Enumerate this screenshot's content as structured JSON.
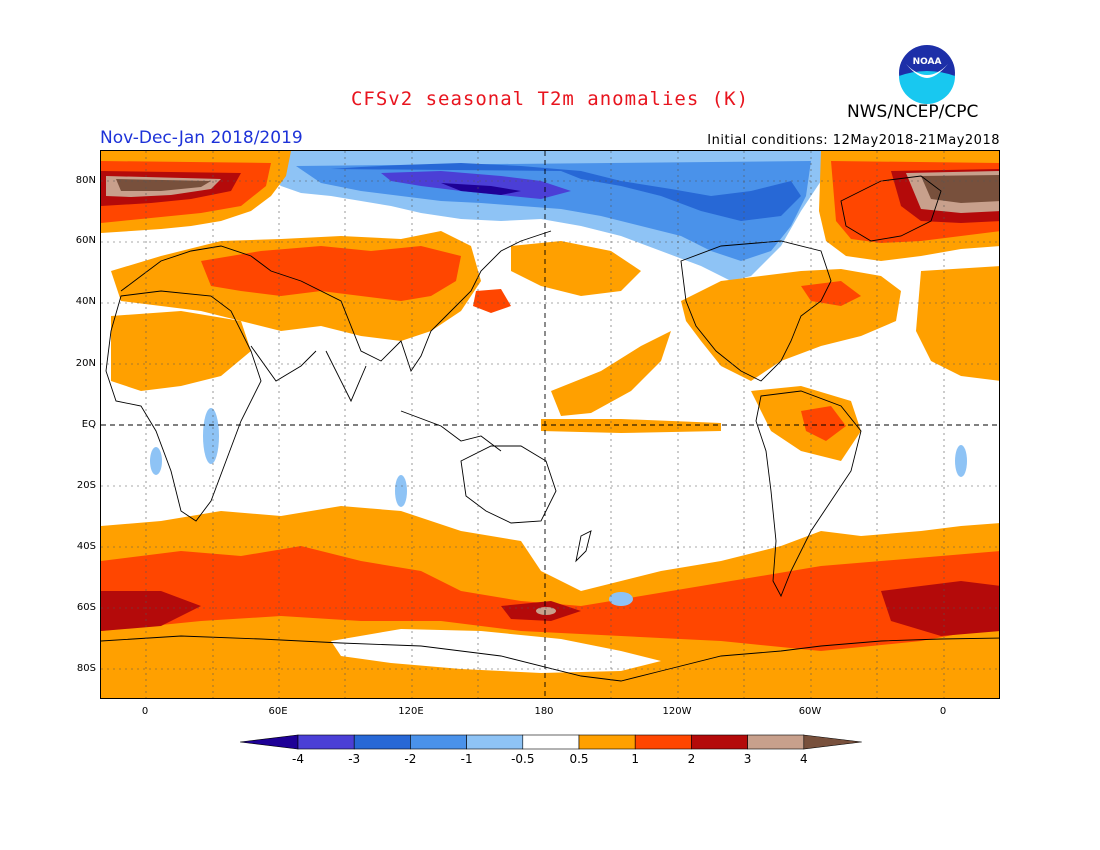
{
  "title": "CFSv2 seasonal T2m anomalies (K)",
  "agency": "NWS/NCEP/CPC",
  "logo_text": "NOAA",
  "period": "Nov-Dec-Jan 2018/2019",
  "initial_conditions": "Initial conditions: 12May2018-21May2018",
  "lat_labels": [
    "80N",
    "60N",
    "40N",
    "20N",
    "EQ",
    "20S",
    "40S",
    "60S",
    "80S"
  ],
  "lon_labels": [
    "0",
    "60E",
    "120E",
    "180",
    "120W",
    "60W",
    "0"
  ],
  "colorbar": {
    "labels": [
      "-4",
      "-3",
      "-2",
      "-1",
      "-0.5",
      "0.5",
      "1",
      "2",
      "3",
      "4"
    ],
    "colors": [
      "#1e0096",
      "#4b3fd6",
      "#2768d6",
      "#4a92ea",
      "#8ec3f5",
      "#ffffff",
      "#ffa000",
      "#ff4600",
      "#b40a0a",
      "#c8a08c",
      "#78503c"
    ]
  },
  "colors": {
    "title": "#e8141e",
    "period": "#1d32d8",
    "warm1": "#ffa000",
    "warm2": "#ff4600",
    "warm3": "#b40a0a",
    "warm4": "#c8a08c",
    "warm5": "#78503c",
    "cool1": "#8ec3f5",
    "cool2": "#4a92ea",
    "cool3": "#2768d6",
    "cool4": "#4b3fd6",
    "cool5": "#1e0096"
  }
}
